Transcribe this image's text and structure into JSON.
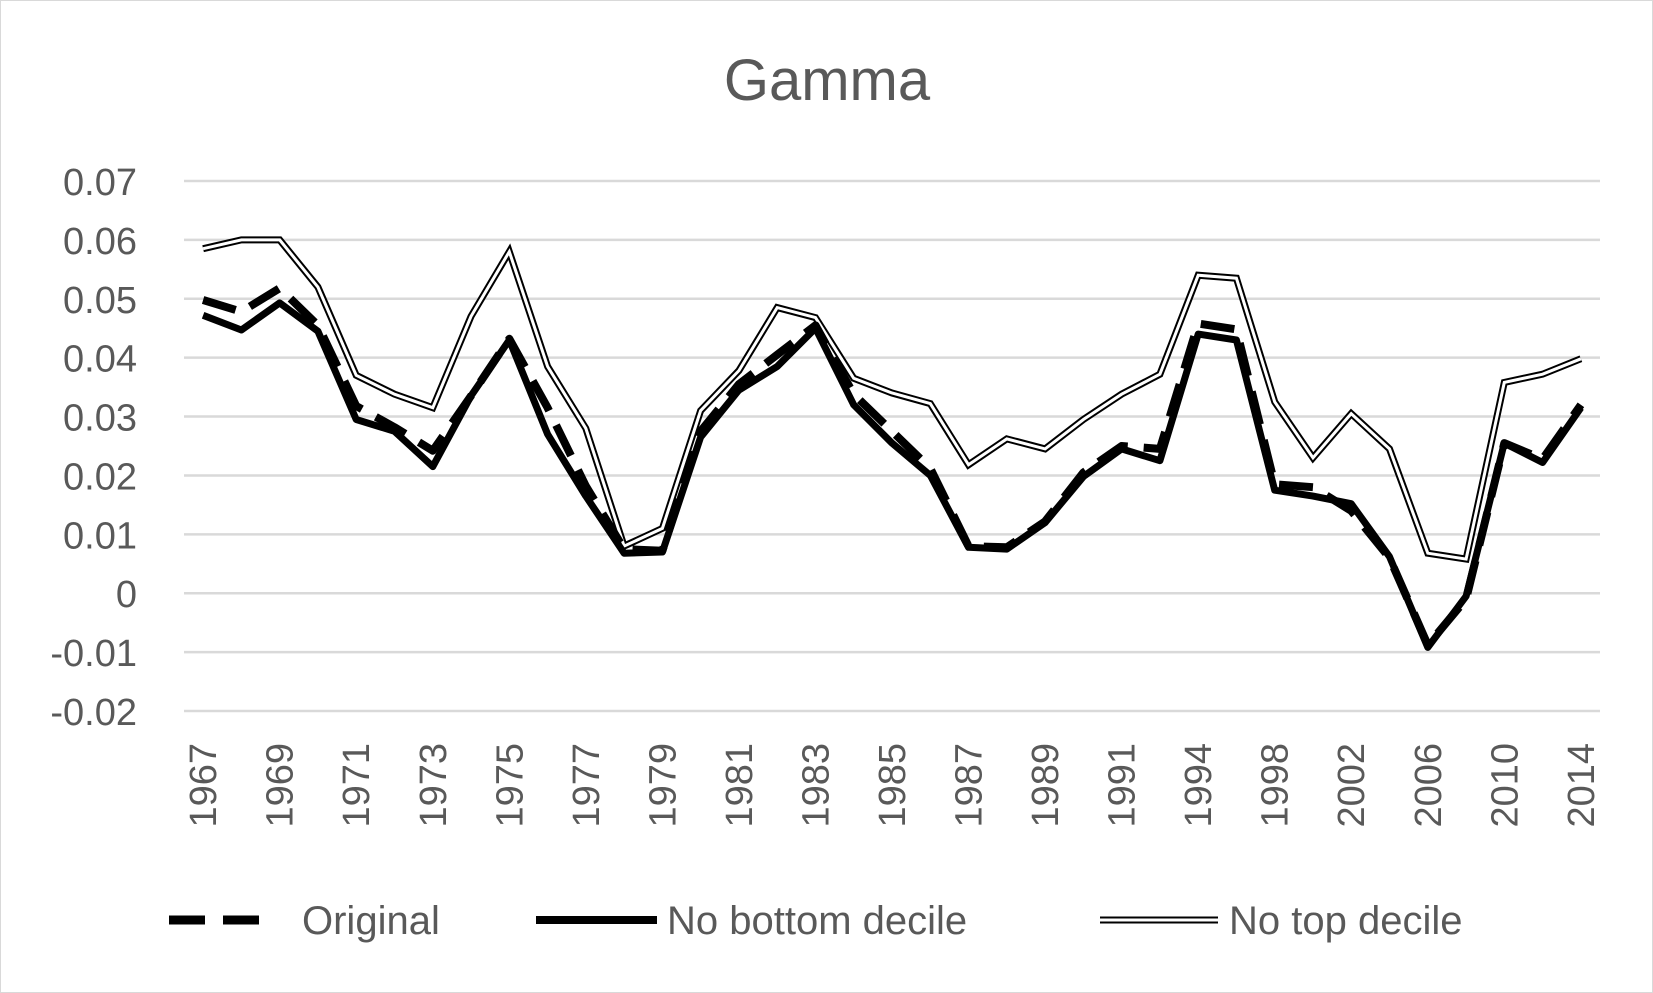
{
  "chart_data": {
    "type": "line",
    "title": "Gamma",
    "xlabel": "",
    "ylabel": "",
    "ylim": [
      -0.02,
      0.07
    ],
    "y_ticks": [
      "0.07",
      "0.06",
      "0.05",
      "0.04",
      "0.03",
      "0.02",
      "0.01",
      "0",
      "-0.01",
      "-0.02"
    ],
    "x": [
      "1967",
      "1968",
      "1969",
      "1970",
      "1971",
      "1972",
      "1973",
      "1974",
      "1975",
      "1976",
      "1977",
      "1978",
      "1979",
      "1980",
      "1981",
      "1982",
      "1983",
      "1984",
      "1985",
      "1986",
      "1987",
      "1988",
      "1989",
      "1990",
      "1991",
      "1992",
      "1994",
      "1996",
      "1998",
      "2000",
      "2002",
      "2004",
      "2006",
      "2008",
      "2010",
      "2012",
      "2014"
    ],
    "x_tick_labels": [
      "1967",
      "1969",
      "1971",
      "1973",
      "1975",
      "1977",
      "1979",
      "1981",
      "1983",
      "1985",
      "1987",
      "1989",
      "1991",
      "1994",
      "1998",
      "2002",
      "2006",
      "2010",
      "2014"
    ],
    "grid": true,
    "legend_position": "bottom",
    "series": [
      {
        "name": "Original",
        "style": "dashed",
        "color": "#000000",
        "values": [
          0.0498,
          0.0478,
          0.0518,
          0.0455,
          0.0318,
          0.0282,
          0.0242,
          0.0335,
          0.0432,
          0.0315,
          0.0182,
          0.0075,
          0.0072,
          0.0275,
          0.0355,
          0.0405,
          0.0455,
          0.0338,
          0.0275,
          0.0212,
          0.008,
          0.0078,
          0.0122,
          0.0205,
          0.025,
          0.0245,
          0.0458,
          0.0448,
          0.0185,
          0.018,
          0.014,
          0.006,
          -0.0088,
          -0.001,
          0.0255,
          0.0228,
          0.032
        ]
      },
      {
        "name": "No bottom decile",
        "style": "solid-thick",
        "color": "#000000",
        "values": [
          0.0472,
          0.0447,
          0.0493,
          0.0445,
          0.0295,
          0.0275,
          0.0215,
          0.0335,
          0.043,
          0.027,
          0.0165,
          0.0068,
          0.007,
          0.0265,
          0.0345,
          0.0385,
          0.045,
          0.032,
          0.0255,
          0.02,
          0.0078,
          0.0075,
          0.012,
          0.0198,
          0.0245,
          0.0225,
          0.044,
          0.043,
          0.0175,
          0.0165,
          0.0152,
          0.0062,
          -0.0092,
          -0.0005,
          0.0255,
          0.0222,
          0.0315
        ]
      },
      {
        "name": "No top decile",
        "style": "double",
        "color": "#000000",
        "values": [
          0.0585,
          0.06,
          0.06,
          0.052,
          0.037,
          0.0338,
          0.0315,
          0.047,
          0.058,
          0.0385,
          0.028,
          0.008,
          0.011,
          0.031,
          0.0378,
          0.0485,
          0.0468,
          0.0365,
          0.034,
          0.0322,
          0.0218,
          0.0262,
          0.0245,
          0.0295,
          0.0338,
          0.0372,
          0.054,
          0.0535,
          0.0325,
          0.023,
          0.0305,
          0.0245,
          0.0068,
          0.0058,
          0.0358,
          0.0372,
          0.0398
        ]
      }
    ]
  }
}
